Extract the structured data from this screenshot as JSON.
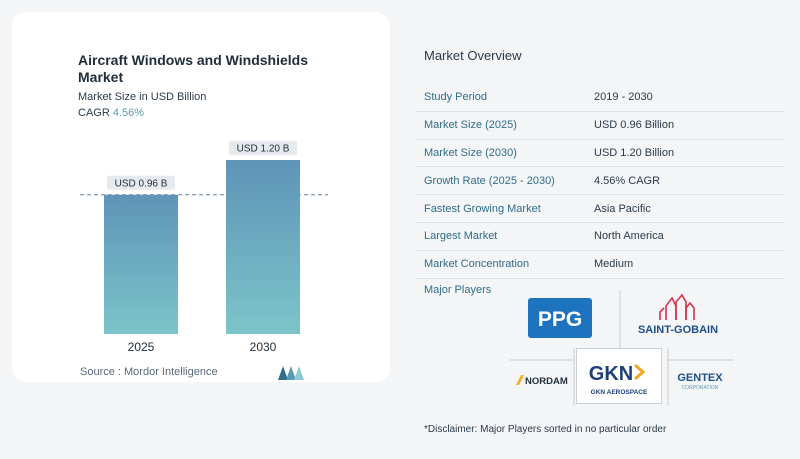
{
  "left_panel": {
    "title": "Aircraft Windows and Windshields Market",
    "subtitle": "Market Size in USD Billion",
    "cagr_label": "CAGR",
    "cagr_value": "4.56%",
    "source": "Source : Mordor Intelligence",
    "accent_color": "#5a9bb0"
  },
  "chart_data": {
    "type": "bar",
    "categories": [
      "2025",
      "2030"
    ],
    "values": [
      0.96,
      1.2
    ],
    "data_labels": [
      "USD 0.96 B",
      "USD 1.20 B"
    ],
    "title": "Aircraft Windows and Windshields Market",
    "xlabel": "",
    "ylabel": "Market Size in USD Billion",
    "ylim": [
      0,
      1.2
    ],
    "grid": false,
    "reference_line_value": 0.96,
    "bar_color_top": "#5f94b8",
    "bar_color_bottom": "#7cc4c9"
  },
  "overview": {
    "title": "Market Overview",
    "rows": [
      {
        "label": "Study Period",
        "value": "2019 - 2030"
      },
      {
        "label": "Market Size (2025)",
        "value": "USD 0.96 Billion"
      },
      {
        "label": "Market Size (2030)",
        "value": "USD 1.20 Billion"
      },
      {
        "label": "Growth Rate (2025 - 2030)",
        "value": "4.56% CAGR"
      },
      {
        "label": "Fastest Growing Market",
        "value": "Asia Pacific"
      },
      {
        "label": "Largest Market",
        "value": "North America"
      },
      {
        "label": "Market Concentration",
        "value": "Medium"
      }
    ]
  },
  "players": {
    "title": "Major Players",
    "logos": {
      "ppg": "PPG",
      "saint_gobain": "SAINT-GOBAIN",
      "nordam": "NORDAM",
      "gkn": "GKN",
      "gkn_sub": "GKN AEROSPACE",
      "gentex": "GENTEX",
      "gentex_sub": "CORPORATION"
    },
    "disclaimer": "*Disclaimer: Major Players sorted in no particular order"
  }
}
